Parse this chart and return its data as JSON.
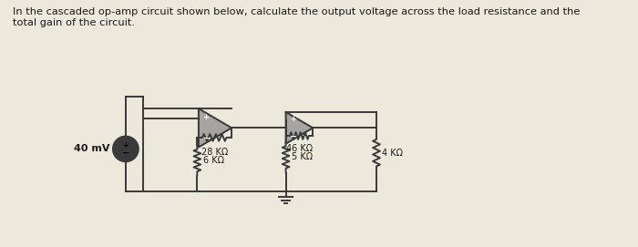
{
  "title_text": "In the cascaded op-amp circuit shown below, calculate the output voltage across the load resistance and the\ntotal gain of the circuit.",
  "bg_color": "#ede8dc",
  "line_color": "#3a3a3a",
  "text_color": "#1a1a1a",
  "source_label": "40 mV",
  "R1_label": "28 KΩ",
  "R2_label": "6 KΩ",
  "R3_label": "46 KΩ",
  "R4_label": "5 KΩ",
  "R5_label": "4 KΩ"
}
